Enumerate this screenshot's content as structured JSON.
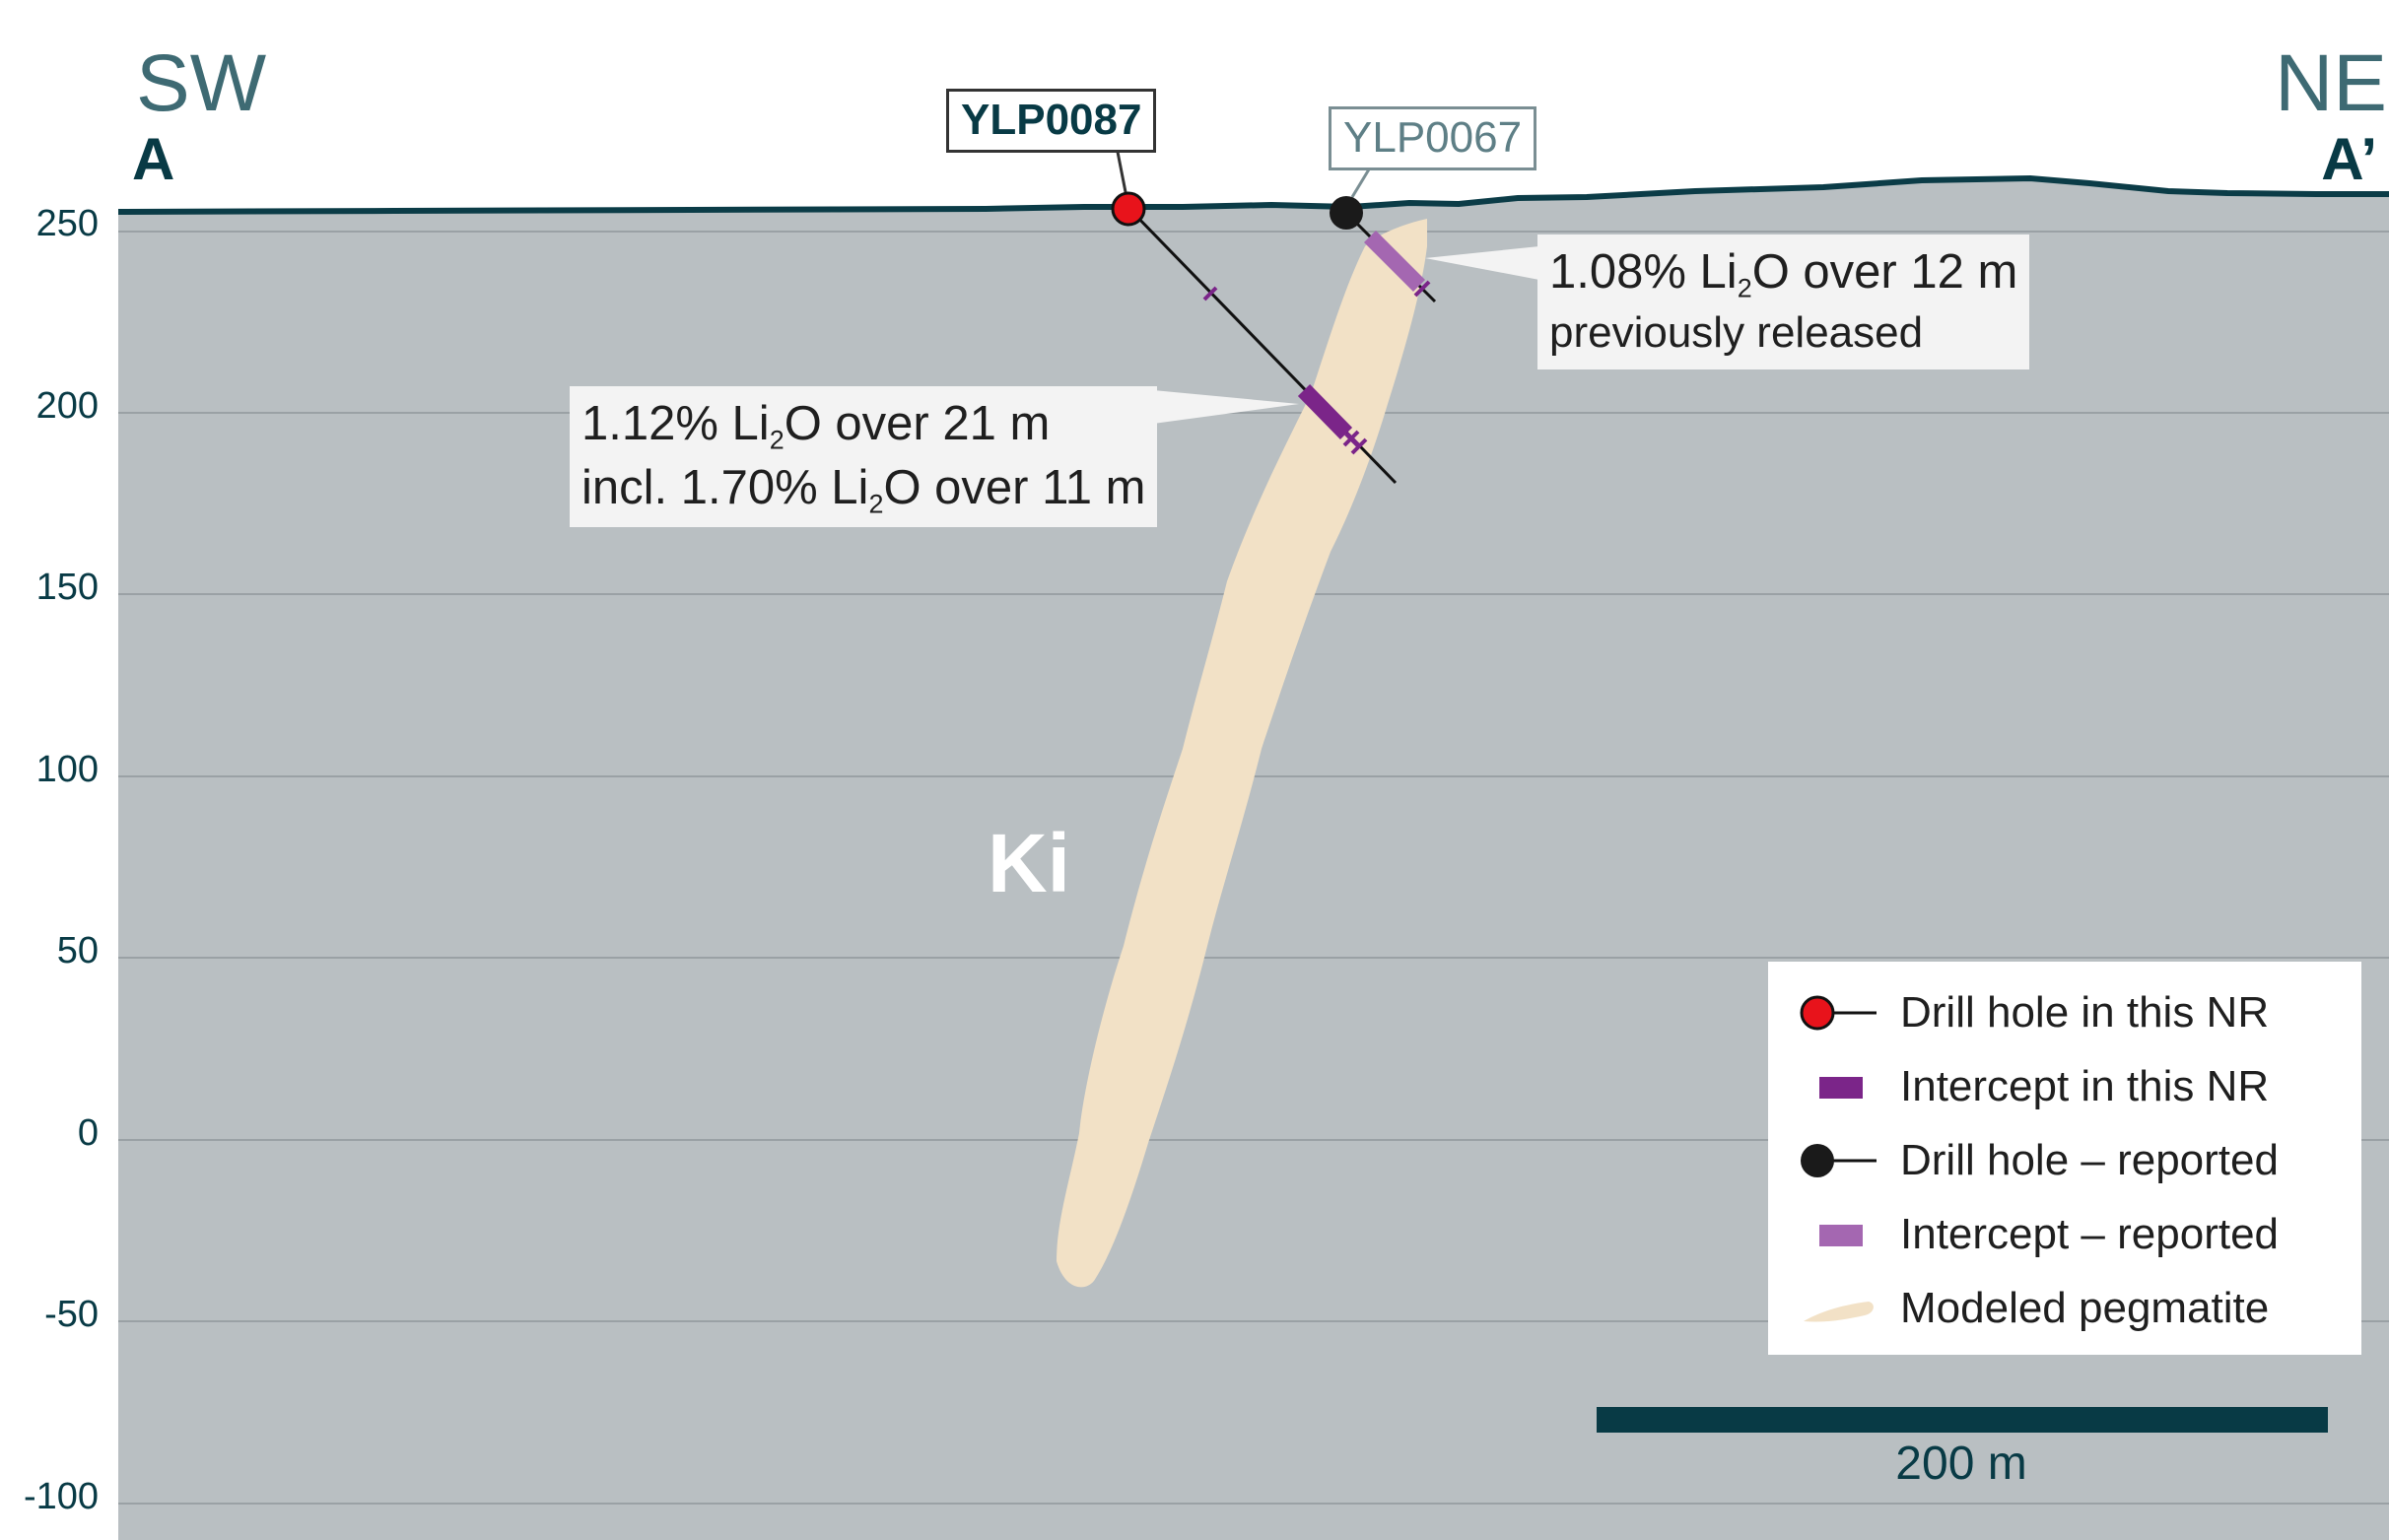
{
  "section": {
    "left_direction": "SW",
    "right_direction": "NE",
    "left_point": "A",
    "right_point": "A’",
    "elevation_ticks": [
      "250",
      "200",
      "150",
      "100",
      "50",
      "0",
      "-50",
      "-100"
    ],
    "unit_label": "Ki",
    "scale_label": "200 m"
  },
  "drill_holes": [
    {
      "id": "YLP0087",
      "status": "this NR",
      "color": "#e8131b"
    },
    {
      "id": "YLP0067",
      "status": "reported",
      "color": "#1a1a1a"
    }
  ],
  "annotations": {
    "main": {
      "l1_pre": "1.12% Li",
      "l1_sub": "2",
      "l1_post": "O over 21 m",
      "l2_pre": "incl. 1.70% Li",
      "l2_sub": "2",
      "l2_post": "O over 11 m"
    },
    "prev": {
      "l1_pre": "1.08% Li",
      "l1_sub": "2",
      "l1_post": "O over 12 m",
      "l2": "previously released"
    }
  },
  "legend": [
    {
      "label": "Drill hole in this NR",
      "icon": "red-collar-line-icon"
    },
    {
      "label": "Intercept in this NR",
      "icon": "dark-purple-bar-icon"
    },
    {
      "label": "Drill hole – reported",
      "icon": "black-collar-line-icon"
    },
    {
      "label": "Intercept – reported",
      "icon": "light-purple-bar-icon"
    },
    {
      "label": "Modeled pegmatite",
      "icon": "pegmatite-shape-icon"
    }
  ],
  "colors": {
    "rock": "#b9bfc2",
    "pegmatite": "#f2e1c6",
    "surface": "#0b3c47",
    "intercept_new": "#7b2589",
    "intercept_reported": "#a467b1",
    "collar_new": "#e8131b",
    "collar_reported": "#1a1a1a",
    "hole_label_new": "#083a45",
    "hole_label_reported": "#5e7f86",
    "scale_bar": "#083a45"
  }
}
